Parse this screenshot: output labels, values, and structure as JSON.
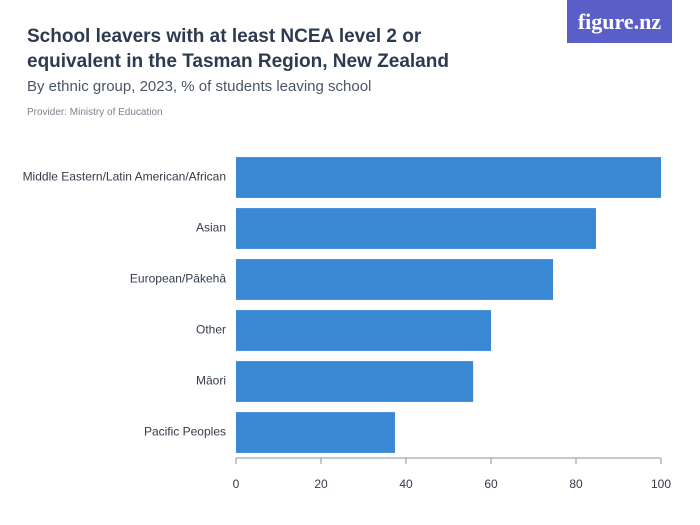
{
  "chart_data": {
    "type": "barh",
    "title": "School leavers with at least NCEA level 2 or equivalent in the Tasman Region, New Zealand",
    "subtitle": "By ethnic group, 2023, % of students leaving school",
    "provider": "Provider: Ministry of Education",
    "logo": "figure.nz",
    "categories": [
      "Middle Eastern/Latin American/African",
      "Asian",
      "European/Pākehā",
      "Other",
      "Māori",
      "Pacific Peoples"
    ],
    "values": [
      100,
      84.7,
      74.6,
      60,
      55.8,
      37.4
    ],
    "color": "#3a87d4",
    "xlim": [
      0,
      100
    ],
    "xticks": [
      0,
      20,
      40,
      60,
      80,
      100
    ]
  }
}
